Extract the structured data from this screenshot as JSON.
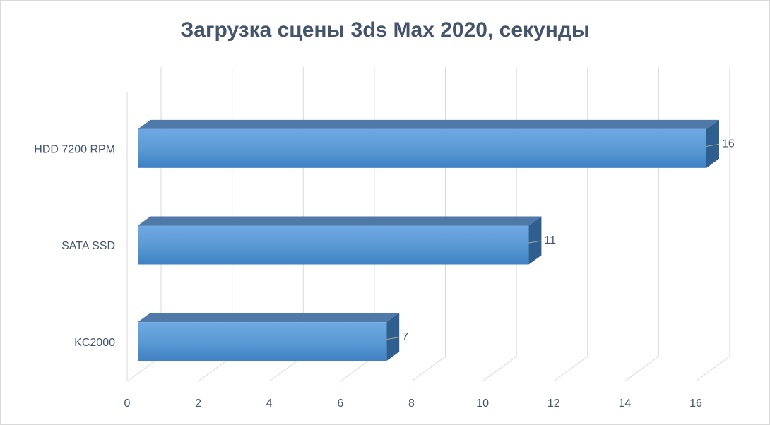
{
  "chart_data": {
    "type": "bar3d",
    "orientation": "horizontal",
    "title": "Загрузка сцены 3ds Max 2020, секунды",
    "categories": [
      "HDD 7200 RPM",
      "SATA SSD",
      "KC2000"
    ],
    "values": [
      16,
      11,
      7
    ],
    "color": "#5b9bd5",
    "xlim": [
      0,
      16
    ],
    "xticks": [
      0,
      2,
      4,
      6,
      8,
      10,
      12,
      14,
      16
    ],
    "grid": true,
    "data_labels": true
  }
}
